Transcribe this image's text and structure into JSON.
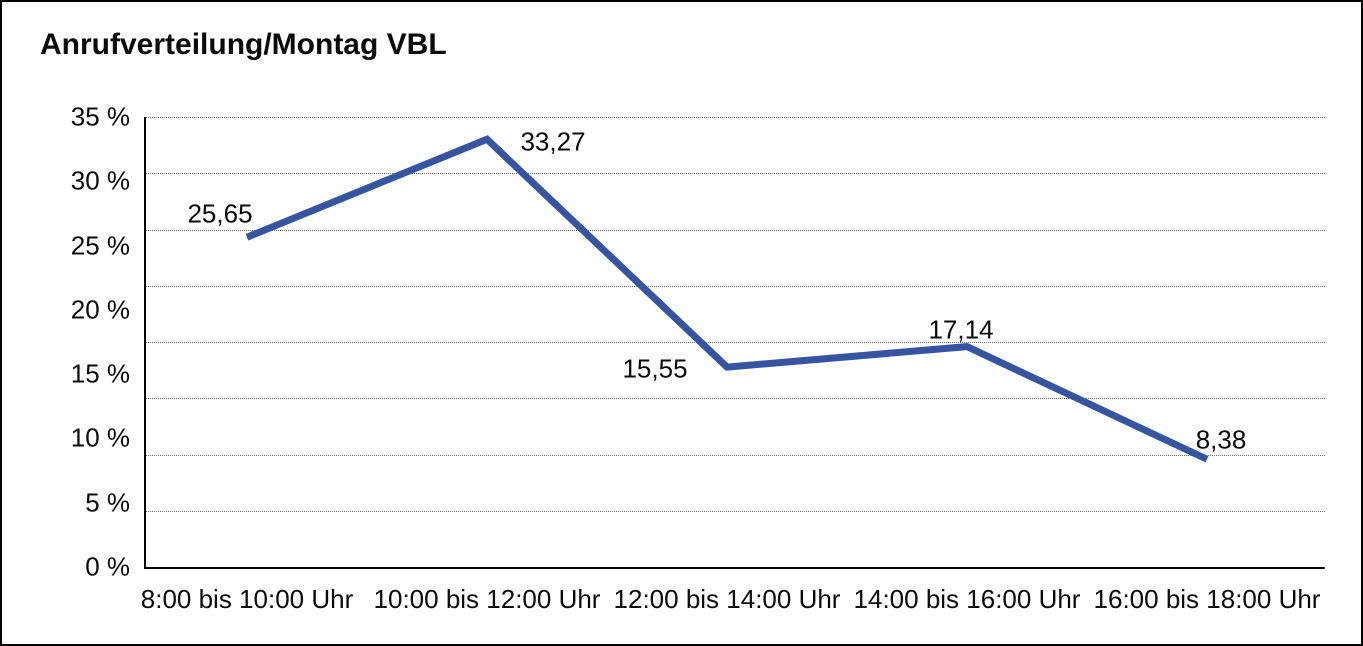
{
  "chart_data": {
    "type": "line",
    "title": "Anrufverteilung/Montag VBL",
    "categories": [
      "8:00 bis 10:00 Uhr",
      "10:00 bis 12:00 Uhr",
      "12:00 bis 14:00 Uhr",
      "14:00 bis 16:00 Uhr",
      "16:00 bis 18:00 Uhr"
    ],
    "values": [
      25.65,
      33.27,
      15.55,
      17.14,
      8.38
    ],
    "data_labels": [
      "25,65",
      "33,27",
      "15,55",
      "17,14",
      "8,38"
    ],
    "y_ticks": [
      "35 %",
      "30 %",
      "25 %",
      "20 %",
      "15 %",
      "10 %",
      "5 %",
      "0 %"
    ],
    "ylim": [
      0,
      35
    ],
    "xlabel": "",
    "ylabel": "",
    "legend_position": "none",
    "grid": "horizontal-dotted",
    "gridline_intervals": 8,
    "line_color": "#36549f",
    "axis_color": "#000000",
    "text_color": "#0a0a0a"
  }
}
